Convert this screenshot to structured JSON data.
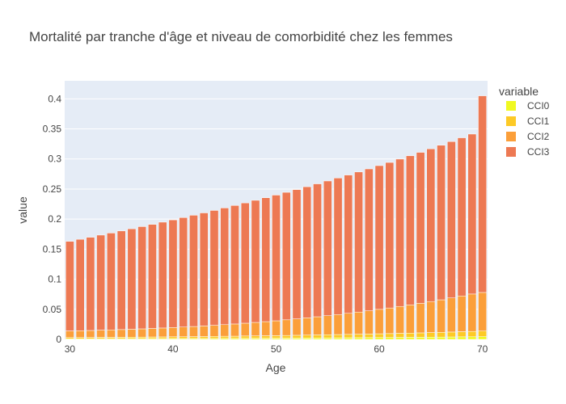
{
  "chart_data": {
    "type": "bar",
    "stacked": true,
    "title": "Mortalité par tranche d'âge et niveau de comorbidité chez les femmes",
    "xlabel": "Age",
    "ylabel": "value",
    "xlim": [
      29.5,
      70.5
    ],
    "ylim": [
      0,
      0.43
    ],
    "x_ticks": [
      30,
      40,
      50,
      60,
      70
    ],
    "y_ticks": [
      0,
      0.05,
      0.1,
      0.15,
      0.2,
      0.25,
      0.3,
      0.35,
      0.4
    ],
    "y_tick_labels": [
      "0",
      "0.05",
      "0.1",
      "0.15",
      "0.2",
      "0.25",
      "0.3",
      "0.35",
      "0.4"
    ],
    "grid": true,
    "plot_background": "#e5ecf6",
    "legend": {
      "title": "variable",
      "placement": "right"
    },
    "x": [
      30,
      31,
      32,
      33,
      34,
      35,
      36,
      37,
      38,
      39,
      40,
      41,
      42,
      43,
      44,
      45,
      46,
      47,
      48,
      49,
      50,
      51,
      52,
      53,
      54,
      55,
      56,
      57,
      58,
      59,
      60,
      61,
      62,
      63,
      64,
      65,
      66,
      67,
      68,
      69,
      70
    ],
    "series": [
      {
        "name": "CCI0",
        "color": "#f0f921",
        "values": [
          0.001,
          0.001,
          0.001,
          0.0011,
          0.0011,
          0.0011,
          0.0012,
          0.0012,
          0.0013,
          0.0013,
          0.0014,
          0.0014,
          0.0015,
          0.0015,
          0.0016,
          0.0017,
          0.0017,
          0.0018,
          0.0019,
          0.0019,
          0.002,
          0.0021,
          0.0022,
          0.0023,
          0.0024,
          0.0025,
          0.0026,
          0.0027,
          0.0028,
          0.0029,
          0.003,
          0.0031,
          0.0033,
          0.0034,
          0.0035,
          0.0037,
          0.0038,
          0.004,
          0.0042,
          0.0043,
          0.0045
        ]
      },
      {
        "name": "CCI1",
        "color": "#fdca26",
        "values": [
          0.002,
          0.0021,
          0.0022,
          0.0023,
          0.0023,
          0.0024,
          0.0025,
          0.0026,
          0.0027,
          0.0028,
          0.0029,
          0.003,
          0.0031,
          0.0032,
          0.0034,
          0.0035,
          0.0036,
          0.0038,
          0.0039,
          0.0041,
          0.0042,
          0.0044,
          0.0046,
          0.0048,
          0.005,
          0.0052,
          0.0054,
          0.0056,
          0.0058,
          0.006,
          0.0063,
          0.0065,
          0.0068,
          0.007,
          0.0073,
          0.0076,
          0.0079,
          0.0082,
          0.0086,
          0.0089,
          0.0093
        ]
      },
      {
        "name": "CCI2",
        "color": "#fb9f3a",
        "values": [
          0.011,
          0.0113,
          0.0116,
          0.012,
          0.0124,
          0.0128,
          0.0132,
          0.0137,
          0.0142,
          0.0148,
          0.0154,
          0.0161,
          0.0168,
          0.0176,
          0.0184,
          0.0193,
          0.0203,
          0.0213,
          0.0224,
          0.0235,
          0.0247,
          0.026,
          0.0273,
          0.0287,
          0.0302,
          0.0317,
          0.0333,
          0.035,
          0.0368,
          0.0386,
          0.0406,
          0.0426,
          0.0447,
          0.0469,
          0.0492,
          0.0516,
          0.0541,
          0.0567,
          0.0594,
          0.0622,
          0.0642
        ]
      },
      {
        "name": "CCI3",
        "color": "#ed7953",
        "values": [
          0.149,
          0.152,
          0.155,
          0.158,
          0.161,
          0.164,
          0.167,
          0.17,
          0.173,
          0.176,
          0.179,
          0.182,
          0.185,
          0.188,
          0.191,
          0.194,
          0.197,
          0.2,
          0.203,
          0.206,
          0.209,
          0.212,
          0.215,
          0.218,
          0.221,
          0.224,
          0.227,
          0.23,
          0.233,
          0.236,
          0.239,
          0.242,
          0.245,
          0.248,
          0.251,
          0.254,
          0.257,
          0.26,
          0.263,
          0.266,
          0.327
        ]
      }
    ]
  }
}
